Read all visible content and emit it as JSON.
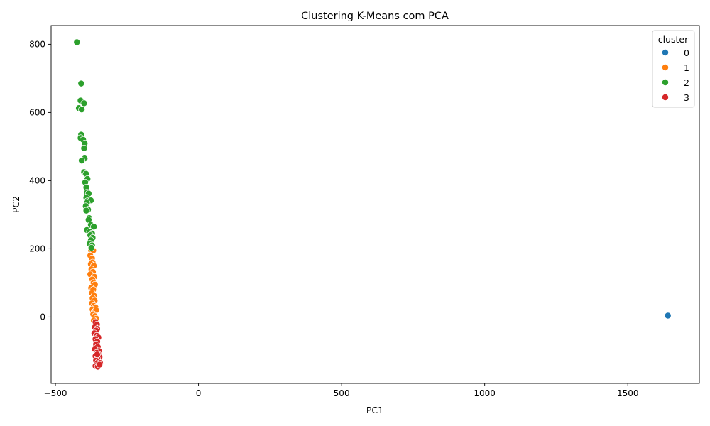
{
  "chart_data": {
    "type": "scatter",
    "title": "Clustering K-Means com PCA",
    "xlabel": "PC1",
    "ylabel": "PC2",
    "xlim": [
      -515,
      1750
    ],
    "ylim": [
      -195,
      855
    ],
    "xticks": [
      -500,
      0,
      500,
      1000,
      1500
    ],
    "yticks": [
      0,
      200,
      400,
      600,
      800
    ],
    "xtick_labels": [
      "−500",
      "0",
      "500",
      "1000",
      "1500"
    ],
    "ytick_labels": [
      "0",
      "200",
      "400",
      "600",
      "800"
    ],
    "grid": false,
    "legend": {
      "title": "cluster",
      "placement": "top-right",
      "entries": [
        "0",
        "1",
        "2",
        "3"
      ]
    },
    "colors": {
      "0": "#1f77b4",
      "1": "#ff7f0e",
      "2": "#2ca02c",
      "3": "#d62728"
    },
    "series": [
      {
        "name": "0",
        "points": [
          [
            1640,
            4
          ]
        ]
      },
      {
        "name": "1",
        "points": [
          [
            -375,
            195
          ],
          [
            -368,
            195
          ],
          [
            -378,
            180
          ],
          [
            -372,
            172
          ],
          [
            -370,
            160
          ],
          [
            -376,
            155
          ],
          [
            -366,
            150
          ],
          [
            -374,
            140
          ],
          [
            -369,
            132
          ],
          [
            -378,
            125
          ],
          [
            -364,
            118
          ],
          [
            -371,
            110
          ],
          [
            -367,
            100
          ],
          [
            -362,
            95
          ],
          [
            -375,
            85
          ],
          [
            -368,
            80
          ],
          [
            -372,
            70
          ],
          [
            -365,
            62
          ],
          [
            -370,
            55
          ],
          [
            -363,
            48
          ],
          [
            -372,
            40
          ],
          [
            -366,
            32
          ],
          [
            -360,
            28
          ],
          [
            -370,
            22
          ],
          [
            -364,
            15
          ],
          [
            -358,
            20
          ],
          [
            -368,
            8
          ],
          [
            -362,
            2
          ],
          [
            -357,
            -5
          ],
          [
            -366,
            -10
          ]
        ]
      },
      {
        "name": "2",
        "points": [
          [
            -425,
            806
          ],
          [
            -410,
            685
          ],
          [
            -412,
            635
          ],
          [
            -400,
            627
          ],
          [
            -418,
            613
          ],
          [
            -408,
            609
          ],
          [
            -410,
            535
          ],
          [
            -412,
            525
          ],
          [
            -403,
            520
          ],
          [
            -398,
            509
          ],
          [
            -400,
            495
          ],
          [
            -398,
            465
          ],
          [
            -408,
            459
          ],
          [
            -400,
            425
          ],
          [
            -393,
            420
          ],
          [
            -388,
            405
          ],
          [
            -396,
            395
          ],
          [
            -392,
            380
          ],
          [
            -390,
            365
          ],
          [
            -384,
            362
          ],
          [
            -392,
            350
          ],
          [
            -388,
            340
          ],
          [
            -376,
            342
          ],
          [
            -390,
            335
          ],
          [
            -394,
            325
          ],
          [
            -386,
            315
          ],
          [
            -392,
            312
          ],
          [
            -382,
            290
          ],
          [
            -384,
            285
          ],
          [
            -376,
            270
          ],
          [
            -366,
            265
          ],
          [
            -390,
            255
          ],
          [
            -380,
            250
          ],
          [
            -372,
            245
          ],
          [
            -378,
            240
          ],
          [
            -370,
            232
          ],
          [
            -376,
            225
          ],
          [
            -380,
            215
          ],
          [
            -372,
            210
          ],
          [
            -374,
            203
          ]
        ]
      },
      {
        "name": "3",
        "points": [
          [
            -360,
            -15
          ],
          [
            -355,
            -22
          ],
          [
            -362,
            -30
          ],
          [
            -354,
            -35
          ],
          [
            -358,
            -40
          ],
          [
            -364,
            -48
          ],
          [
            -356,
            -55
          ],
          [
            -350,
            -60
          ],
          [
            -360,
            -65
          ],
          [
            -354,
            -72
          ],
          [
            -358,
            -80
          ],
          [
            -352,
            -88
          ],
          [
            -362,
            -95
          ],
          [
            -348,
            -100
          ],
          [
            -356,
            -105
          ],
          [
            -350,
            -110
          ],
          [
            -360,
            -115
          ],
          [
            -346,
            -118
          ],
          [
            -354,
            -122
          ],
          [
            -358,
            -128
          ],
          [
            -350,
            -132
          ],
          [
            -344,
            -135
          ],
          [
            -356,
            -138
          ],
          [
            -348,
            -142
          ],
          [
            -360,
            -144
          ],
          [
            -352,
            -146
          ],
          [
            -346,
            -140
          ],
          [
            -354,
            -110
          ]
        ]
      }
    ]
  }
}
